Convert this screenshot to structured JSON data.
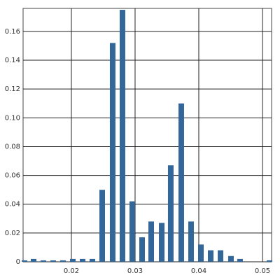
{
  "chart_data": {
    "type": "bar",
    "x": [
      0.01264,
      0.01407,
      0.0156,
      0.01714,
      0.01868,
      0.02022,
      0.02176,
      0.0233,
      0.02484,
      0.02648,
      0.02802,
      0.02956,
      0.0311,
      0.03253,
      0.03418,
      0.0356,
      0.03725,
      0.03879,
      0.04033,
      0.04187,
      0.04341,
      0.04505,
      0.04648,
      0.0511
    ],
    "values": [
      0.001,
      0.002,
      0.001,
      0.001,
      0.001,
      0.002,
      0.002,
      0.002,
      0.05,
      0.152,
      0.175,
      0.042,
      0.017,
      0.028,
      0.027,
      0.067,
      0.11,
      0.028,
      0.012,
      0.008,
      0.008,
      0.004,
      0.002,
      0.001
    ],
    "color": "#336699",
    "xlim": [
      0.01242,
      0.05143
    ],
    "ylim": [
      0,
      0.176
    ],
    "xticks": [
      0.02,
      0.03,
      0.04,
      0.05
    ],
    "yticks": [
      0,
      0.02,
      0.04,
      0.06,
      0.08,
      {
        "value": 0.1,
        "label": "0.10"
      },
      0.12,
      0.14,
      0.16
    ],
    "grid": true
  }
}
